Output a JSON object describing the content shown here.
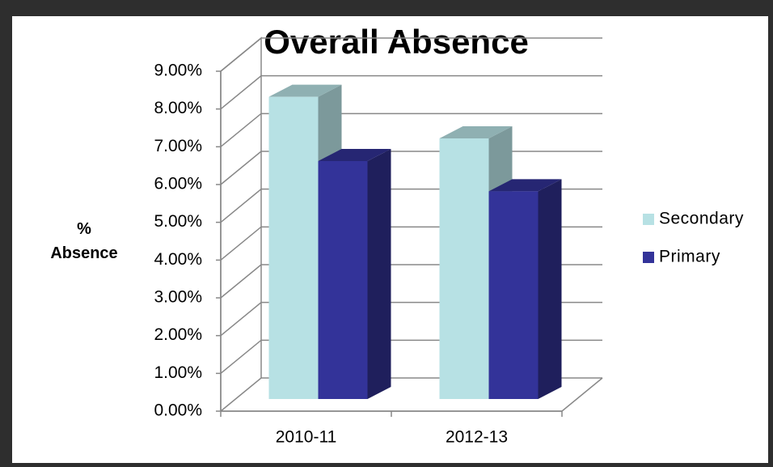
{
  "chart_data": {
    "type": "bar3d",
    "title": "Overall Absence",
    "y_label": "% Absence",
    "categories": [
      "2010-11",
      "2012-13"
    ],
    "series": [
      {
        "name": "Secondary",
        "color": "#b7e1e4",
        "values": [
          8.0,
          6.9
        ]
      },
      {
        "name": "Primary",
        "color": "#333399",
        "values": [
          6.3,
          5.5
        ]
      }
    ],
    "ylim": [
      0,
      9
    ],
    "yticks": [
      {
        "value": 0,
        "label": "0.00%"
      },
      {
        "value": 1,
        "label": "1.00%"
      },
      {
        "value": 2,
        "label": "2.00%"
      },
      {
        "value": 3,
        "label": "3.00%"
      },
      {
        "value": 4,
        "label": "4.00%"
      },
      {
        "value": 5,
        "label": "5.00%"
      },
      {
        "value": 6,
        "label": "6.00%"
      },
      {
        "value": 7,
        "label": "7.00%"
      },
      {
        "value": 8,
        "label": "8.00%"
      },
      {
        "value": 9,
        "label": "9.00%"
      }
    ],
    "grid": true,
    "legend": "right"
  }
}
